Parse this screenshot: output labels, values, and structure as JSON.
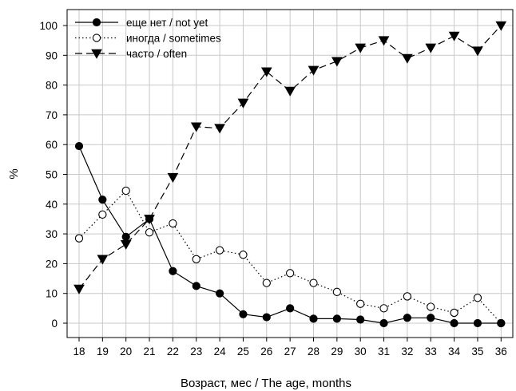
{
  "chart_data": {
    "type": "line",
    "title": "",
    "xlabel": "Возраст, мес / The age, months",
    "ylabel": "%",
    "x": [
      18,
      19,
      20,
      21,
      22,
      23,
      24,
      25,
      26,
      27,
      28,
      29,
      30,
      31,
      32,
      33,
      34,
      35,
      36
    ],
    "xlim": [
      17.5,
      36.5
    ],
    "ylim": [
      -5,
      105
    ],
    "yticks": [
      0,
      10,
      20,
      30,
      40,
      50,
      60,
      70,
      80,
      90,
      100
    ],
    "grid": true,
    "legend_position": "top-left",
    "series": [
      {
        "name": "еще нет / not yet",
        "marker": "filled-circle",
        "line_style": "solid",
        "values": [
          59.5,
          41.5,
          29,
          35,
          17.5,
          12.5,
          10,
          3,
          2,
          5,
          1.5,
          1.5,
          1.2,
          0,
          1.8,
          1.8,
          0,
          0,
          0
        ]
      },
      {
        "name": "иногда / sometimes",
        "marker": "open-circle",
        "line_style": "dotted",
        "values": [
          28.5,
          36.5,
          44.5,
          30.5,
          33.5,
          21.5,
          24.5,
          23,
          13.5,
          16.8,
          13.5,
          10.5,
          6.5,
          5,
          9,
          5.5,
          3.5,
          8.5,
          0
        ]
      },
      {
        "name": "часто / often",
        "marker": "filled-triangle-down",
        "line_style": "dashed",
        "values": [
          11.5,
          21.5,
          26.5,
          35,
          49,
          66,
          65.5,
          74,
          84.5,
          78,
          85,
          88,
          92.5,
          95,
          89,
          92.5,
          96.5,
          91.5,
          100
        ]
      }
    ]
  }
}
